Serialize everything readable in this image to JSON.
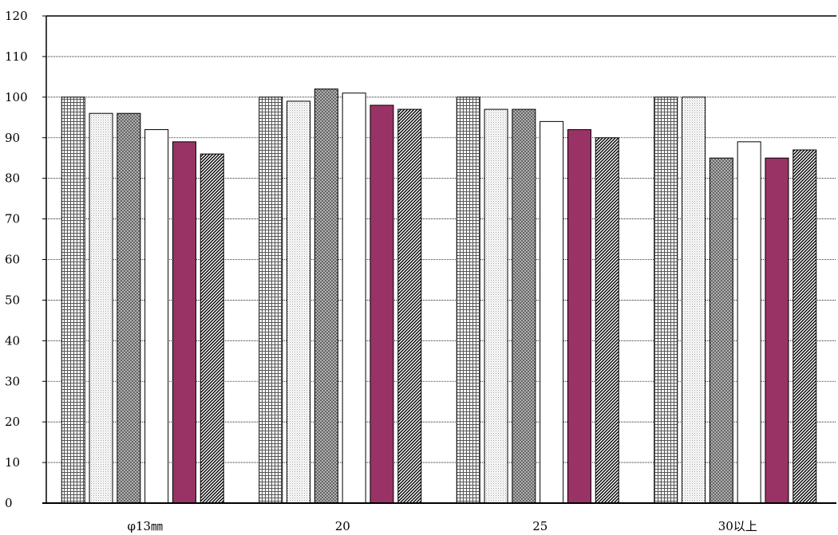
{
  "chart_data": {
    "type": "bar",
    "categories": [
      "φ13㎜",
      "20",
      "25",
      "30以上"
    ],
    "series": [
      {
        "values": [
          100,
          100,
          100,
          100
        ],
        "pattern": "grid"
      },
      {
        "values": [
          96,
          99,
          97,
          100
        ],
        "pattern": "dots"
      },
      {
        "values": [
          96,
          102,
          97,
          85
        ],
        "pattern": "crosshatch"
      },
      {
        "values": [
          92,
          101,
          94,
          89
        ],
        "pattern": "white"
      },
      {
        "values": [
          89,
          98,
          92,
          85
        ],
        "pattern": "solid"
      },
      {
        "values": [
          86,
          97,
          90,
          87
        ],
        "pattern": "diagonal"
      }
    ],
    "ylim": [
      0,
      120
    ],
    "yticks": [
      0,
      10,
      20,
      30,
      40,
      50,
      60,
      70,
      80,
      90,
      100,
      110,
      120
    ],
    "grid": true,
    "colors": {
      "solid": "#993366",
      "border": "#000000",
      "gridline": "#000000"
    }
  }
}
